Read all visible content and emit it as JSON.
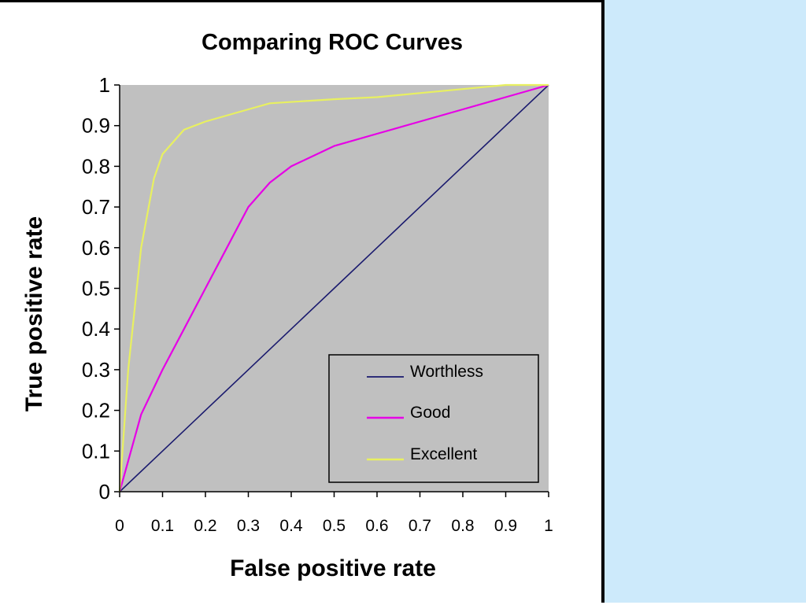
{
  "colors": {
    "plot_background": "#c0c0c0",
    "side_panel": "#cdeafb",
    "worthless": "#1a1a6e",
    "good": "#e600e6",
    "excellent": "#e8f060"
  },
  "chart_data": {
    "type": "line",
    "title": "Comparing ROC Curves",
    "xlabel": "False positive rate",
    "ylabel": "True positive rate",
    "xlim": [
      0,
      1
    ],
    "ylim": [
      0,
      1
    ],
    "x_ticks": [
      "0",
      "0.1",
      "0.2",
      "0.3",
      "0.4",
      "0.5",
      "0.6",
      "0.7",
      "0.8",
      "0.9",
      "1"
    ],
    "y_ticks": [
      "0",
      "0.1",
      "0.2",
      "0.3",
      "0.4",
      "0.5",
      "0.6",
      "0.7",
      "0.8",
      "0.9",
      "1"
    ],
    "grid": false,
    "legend_position": "bottom-right",
    "series": [
      {
        "name": "Worthless",
        "color": "#1a1a6e",
        "x": [
          0,
          0.1,
          0.2,
          0.3,
          0.4,
          0.5,
          0.6,
          0.7,
          0.8,
          0.9,
          1
        ],
        "y": [
          0,
          0.1,
          0.2,
          0.3,
          0.4,
          0.5,
          0.6,
          0.7,
          0.8,
          0.9,
          1
        ]
      },
      {
        "name": "Good",
        "color": "#e600e6",
        "x": [
          0,
          0.05,
          0.1,
          0.15,
          0.2,
          0.25,
          0.3,
          0.35,
          0.4,
          0.5,
          0.6,
          0.7,
          0.8,
          0.9,
          1
        ],
        "y": [
          0,
          0.19,
          0.3,
          0.4,
          0.5,
          0.6,
          0.7,
          0.76,
          0.8,
          0.85,
          0.88,
          0.91,
          0.94,
          0.97,
          1
        ]
      },
      {
        "name": "Excellent",
        "color": "#e8f060",
        "x": [
          0,
          0.02,
          0.05,
          0.08,
          0.1,
          0.15,
          0.2,
          0.3,
          0.35,
          0.5,
          0.6,
          0.7,
          0.8,
          0.9,
          1
        ],
        "y": [
          0,
          0.3,
          0.6,
          0.77,
          0.83,
          0.89,
          0.91,
          0.94,
          0.955,
          0.965,
          0.97,
          0.98,
          0.99,
          1.0,
          1.0
        ]
      }
    ]
  }
}
